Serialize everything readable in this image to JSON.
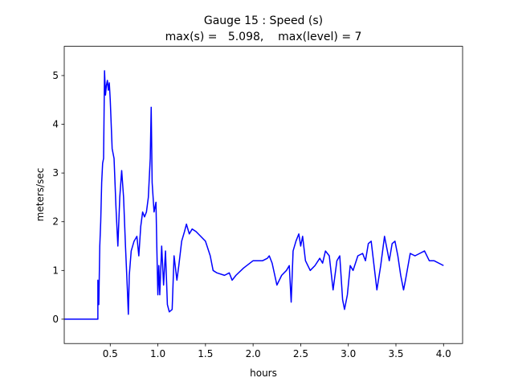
{
  "chart_data": {
    "type": "line",
    "title": "Gauge 15 : Speed (s)",
    "subtitle": "max(s) =   5.098,    max(level) = 7",
    "xlabel": "hours",
    "ylabel": "meters/sec",
    "xlim": [
      0.017,
      4.2
    ],
    "ylim": [
      -0.5,
      5.6
    ],
    "xticks": [
      {
        "value": 0.5,
        "label": "0.5"
      },
      {
        "value": 1.0,
        "label": "1.0"
      },
      {
        "value": 1.5,
        "label": "1.5"
      },
      {
        "value": 2.0,
        "label": "2.0"
      },
      {
        "value": 2.5,
        "label": "2.5"
      },
      {
        "value": 3.0,
        "label": "3.0"
      },
      {
        "value": 3.5,
        "label": "3.5"
      },
      {
        "value": 4.0,
        "label": "4.0"
      }
    ],
    "yticks": [
      0,
      1,
      2,
      3,
      4,
      5
    ],
    "grid": false,
    "series": [
      {
        "color": "#0000ff",
        "x": [
          0.02,
          0.37,
          0.37,
          0.38,
          0.39,
          0.4,
          0.41,
          0.42,
          0.43,
          0.44,
          0.45,
          0.46,
          0.47,
          0.48,
          0.49,
          0.5,
          0.52,
          0.54,
          0.56,
          0.58,
          0.6,
          0.62,
          0.64,
          0.66,
          0.68,
          0.69,
          0.7,
          0.72,
          0.75,
          0.78,
          0.8,
          0.82,
          0.84,
          0.86,
          0.88,
          0.9,
          0.92,
          0.93,
          0.94,
          0.96,
          0.98,
          0.99,
          1.0,
          1.01,
          1.02,
          1.04,
          1.06,
          1.08,
          1.1,
          1.12,
          1.15,
          1.17,
          1.2,
          1.22,
          1.25,
          1.28,
          1.3,
          1.33,
          1.36,
          1.4,
          1.45,
          1.5,
          1.55,
          1.58,
          1.62,
          1.7,
          1.75,
          1.78,
          1.82,
          1.9,
          2.0,
          2.1,
          2.15,
          2.17,
          2.2,
          2.25,
          2.3,
          2.35,
          2.38,
          2.4,
          2.42,
          2.45,
          2.48,
          2.5,
          2.52,
          2.55,
          2.6,
          2.65,
          2.7,
          2.73,
          2.76,
          2.8,
          2.84,
          2.88,
          2.91,
          2.94,
          2.96,
          2.99,
          3.02,
          3.05,
          3.1,
          3.15,
          3.18,
          3.21,
          3.24,
          3.27,
          3.3,
          3.34,
          3.38,
          3.4,
          3.43,
          3.46,
          3.49,
          3.52,
          3.55,
          3.58,
          3.6,
          3.65,
          3.7,
          3.75,
          3.8,
          3.85,
          3.9,
          4.0
        ],
        "values": [
          0,
          0,
          0.8,
          0.3,
          1.5,
          2.0,
          2.8,
          3.2,
          3.3,
          5.098,
          4.6,
          4.8,
          4.9,
          4.7,
          4.85,
          4.5,
          3.5,
          3.3,
          2.3,
          1.5,
          2.5,
          3.05,
          2.5,
          1.5,
          0.6,
          0.1,
          0.9,
          1.4,
          1.6,
          1.7,
          1.3,
          1.9,
          2.2,
          2.1,
          2.2,
          2.5,
          3.3,
          4.35,
          2.8,
          2.2,
          2.4,
          1.4,
          0.5,
          1.1,
          0.5,
          1.5,
          0.7,
          1.4,
          0.3,
          0.15,
          0.2,
          1.3,
          0.8,
          1.1,
          1.6,
          1.8,
          1.95,
          1.75,
          1.85,
          1.8,
          1.7,
          1.6,
          1.3,
          1.0,
          0.95,
          0.9,
          0.95,
          0.8,
          0.9,
          1.05,
          1.2,
          1.2,
          1.25,
          1.3,
          1.15,
          0.7,
          0.9,
          1.0,
          1.1,
          0.35,
          1.4,
          1.6,
          1.75,
          1.5,
          1.7,
          1.2,
          1.0,
          1.1,
          1.25,
          1.15,
          1.4,
          1.3,
          0.6,
          1.2,
          1.3,
          0.4,
          0.2,
          0.5,
          1.1,
          1.0,
          1.3,
          1.35,
          1.2,
          1.55,
          1.6,
          1.1,
          0.6,
          1.1,
          1.7,
          1.5,
          1.2,
          1.55,
          1.6,
          1.3,
          0.9,
          0.6,
          0.8,
          1.35,
          1.3,
          1.35,
          1.4,
          1.2,
          1.2,
          1.1
        ]
      }
    ]
  }
}
